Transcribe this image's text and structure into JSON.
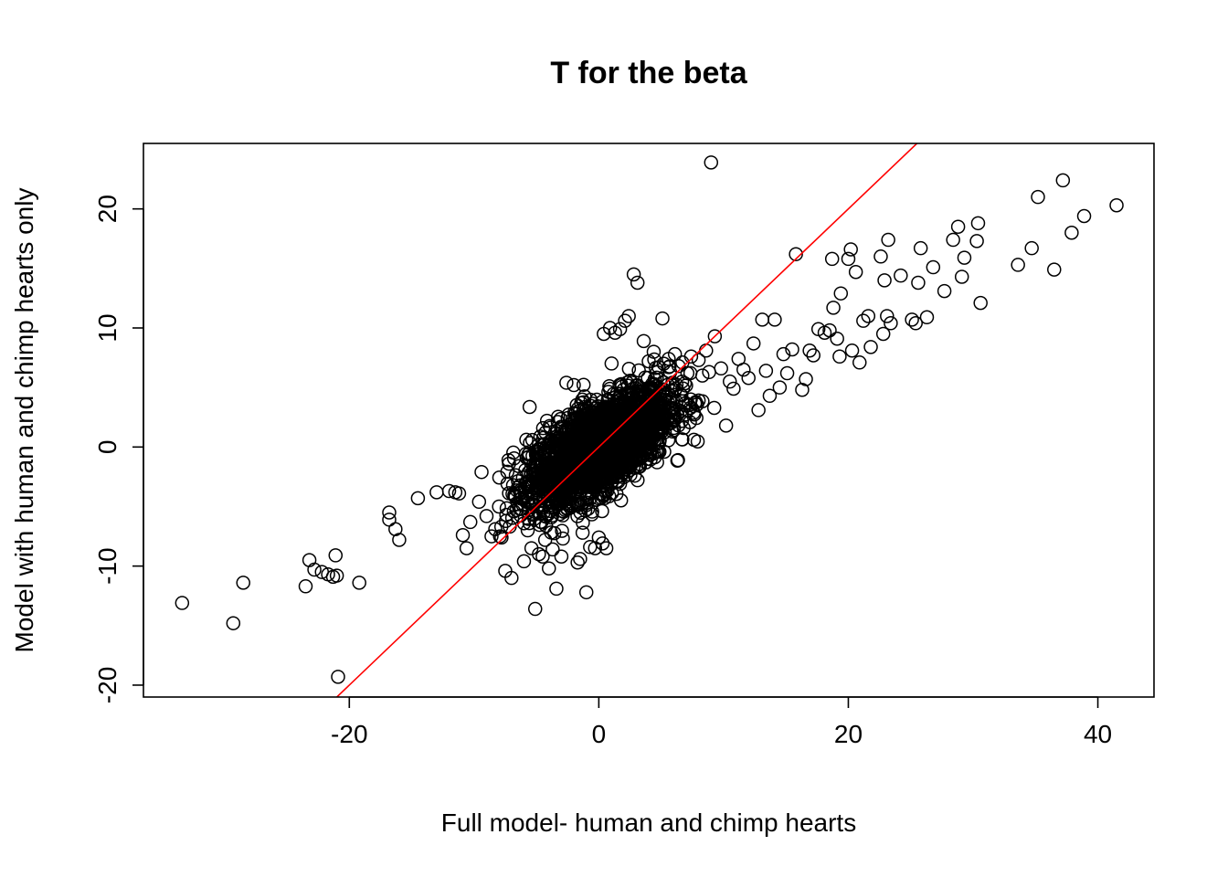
{
  "chart_data": {
    "type": "scatter",
    "title": "T for the beta",
    "xlabel": "Full model- human and chimp hearts",
    "ylabel": "Model with human and chimp hearts only",
    "xlim": [
      -36.5,
      44.5
    ],
    "ylim": [
      -21,
      25.5
    ],
    "xticks": [
      -20,
      0,
      20,
      40
    ],
    "yticks": [
      -20,
      -10,
      0,
      10,
      20
    ],
    "grid": false,
    "marker": "open-circle",
    "reference_line": {
      "intercept": 0,
      "slope": 1,
      "color": "#ff0000"
    },
    "points": [
      [
        -33.4,
        -13.1
      ],
      [
        -29.3,
        -14.8
      ],
      [
        -28.5,
        -11.4
      ],
      [
        -23.5,
        -11.7
      ],
      [
        -23.2,
        -9.5
      ],
      [
        -22.8,
        -10.3
      ],
      [
        -22.2,
        -10.5
      ],
      [
        -21.7,
        -10.7
      ],
      [
        -21.3,
        -10.9
      ],
      [
        -21.0,
        -10.8
      ],
      [
        -21.1,
        -9.1
      ],
      [
        -20.9,
        -19.3
      ],
      [
        -19.2,
        -11.4
      ],
      [
        -16.8,
        -5.5
      ],
      [
        -16.8,
        -6.1
      ],
      [
        -16.3,
        -6.9
      ],
      [
        -16.0,
        -7.8
      ],
      [
        -14.5,
        -4.3
      ],
      [
        -13.0,
        -3.8
      ],
      [
        -12.0,
        -3.7
      ],
      [
        -11.5,
        -3.8
      ],
      [
        -11.2,
        -3.9
      ],
      [
        -10.9,
        -7.4
      ],
      [
        -10.6,
        -8.5
      ],
      [
        -10.3,
        -6.3
      ],
      [
        -9.6,
        -4.6
      ],
      [
        -9.4,
        -2.1
      ],
      [
        -9.0,
        -5.8
      ],
      [
        -8.6,
        -7.5
      ],
      [
        -8.3,
        -6.9
      ],
      [
        -8.0,
        -5.0
      ],
      [
        -7.8,
        -7.6
      ],
      [
        -7.5,
        -10.4
      ],
      [
        -7.2,
        -1.4
      ],
      [
        -7.0,
        -11.0
      ],
      [
        -6.6,
        -5.3
      ],
      [
        -6.5,
        -4.8
      ],
      [
        -6.3,
        -5.2
      ],
      [
        -6.0,
        -9.6
      ],
      [
        -5.7,
        -7.0
      ],
      [
        -5.4,
        -8.5
      ],
      [
        -5.1,
        -13.6
      ],
      [
        -5.0,
        -3.6
      ],
      [
        -4.8,
        -9.0
      ],
      [
        -4.5,
        -9.2
      ],
      [
        -4.3,
        -7.8
      ],
      [
        -4.0,
        -10.2
      ],
      [
        -3.7,
        -8.6
      ],
      [
        -3.4,
        -11.9
      ],
      [
        -3.0,
        -9.2
      ],
      [
        -2.6,
        5.4
      ],
      [
        -2.4,
        -4.9
      ],
      [
        -2.0,
        5.2
      ],
      [
        -1.7,
        -9.7
      ],
      [
        -1.5,
        -9.4
      ],
      [
        -1.3,
        -7.2
      ],
      [
        -1.0,
        -12.2
      ],
      [
        -0.7,
        -8.4
      ],
      [
        -0.3,
        -8.5
      ],
      [
        0.0,
        -7.6
      ],
      [
        0.3,
        -8.1
      ],
      [
        0.6,
        -8.5
      ],
      [
        0.4,
        9.5
      ],
      [
        0.9,
        10.0
      ],
      [
        1.3,
        9.6
      ],
      [
        1.7,
        9.9
      ],
      [
        2.1,
        10.6
      ],
      [
        2.4,
        11.0
      ],
      [
        2.8,
        14.5
      ],
      [
        3.1,
        13.8
      ],
      [
        3.6,
        8.9
      ],
      [
        4.0,
        7.2
      ],
      [
        4.4,
        8.0
      ],
      [
        4.8,
        6.7
      ],
      [
        5.2,
        7.0
      ],
      [
        5.1,
        10.8
      ],
      [
        5.6,
        7.4
      ],
      [
        6.1,
        7.8
      ],
      [
        6.4,
        6.8
      ],
      [
        6.7,
        7.1
      ],
      [
        7.1,
        6.2
      ],
      [
        7.4,
        7.6
      ],
      [
        8.0,
        7.3
      ],
      [
        8.3,
        6.0
      ],
      [
        8.6,
        8.1
      ],
      [
        9.0,
        23.9
      ],
      [
        9.3,
        9.3
      ],
      [
        9.8,
        6.6
      ],
      [
        10.2,
        1.8
      ],
      [
        10.5,
        5.5
      ],
      [
        10.8,
        4.9
      ],
      [
        11.2,
        7.4
      ],
      [
        11.6,
        6.5
      ],
      [
        12.0,
        5.8
      ],
      [
        12.4,
        8.7
      ],
      [
        12.8,
        3.1
      ],
      [
        13.1,
        10.7
      ],
      [
        13.4,
        6.4
      ],
      [
        13.7,
        4.3
      ],
      [
        14.1,
        10.7
      ],
      [
        14.5,
        5.0
      ],
      [
        14.8,
        7.8
      ],
      [
        15.1,
        6.2
      ],
      [
        15.5,
        8.2
      ],
      [
        15.8,
        16.2
      ],
      [
        16.3,
        4.8
      ],
      [
        16.6,
        5.7
      ],
      [
        16.9,
        8.1
      ],
      [
        17.2,
        7.7
      ],
      [
        17.6,
        9.9
      ],
      [
        18.1,
        9.6
      ],
      [
        18.5,
        9.8
      ],
      [
        18.7,
        15.8
      ],
      [
        18.8,
        11.7
      ],
      [
        19.1,
        9.1
      ],
      [
        19.4,
        12.9
      ],
      [
        19.3,
        7.6
      ],
      [
        20.0,
        15.8
      ],
      [
        20.2,
        16.6
      ],
      [
        20.3,
        8.1
      ],
      [
        20.6,
        14.7
      ],
      [
        20.9,
        7.1
      ],
      [
        21.2,
        10.6
      ],
      [
        21.6,
        11.0
      ],
      [
        21.8,
        8.4
      ],
      [
        22.6,
        16.0
      ],
      [
        22.8,
        9.5
      ],
      [
        22.9,
        14.0
      ],
      [
        23.1,
        11.0
      ],
      [
        23.4,
        10.4
      ],
      [
        23.2,
        17.4
      ],
      [
        24.2,
        14.4
      ],
      [
        25.1,
        10.7
      ],
      [
        25.4,
        10.4
      ],
      [
        25.6,
        13.8
      ],
      [
        25.8,
        16.7
      ],
      [
        26.3,
        10.9
      ],
      [
        26.8,
        15.1
      ],
      [
        27.7,
        13.1
      ],
      [
        28.4,
        17.4
      ],
      [
        28.8,
        18.5
      ],
      [
        29.1,
        14.3
      ],
      [
        29.3,
        15.9
      ],
      [
        30.3,
        17.3
      ],
      [
        30.4,
        18.8
      ],
      [
        30.6,
        12.1
      ],
      [
        33.6,
        15.3
      ],
      [
        34.7,
        16.7
      ],
      [
        35.2,
        21.0
      ],
      [
        36.5,
        14.9
      ],
      [
        37.2,
        22.4
      ],
      [
        37.9,
        18.0
      ],
      [
        38.9,
        19.4
      ],
      [
        41.5,
        20.3
      ]
    ],
    "dense_cloud": {
      "x_range": [
        -8,
        9.5
      ],
      "y_range": [
        -8,
        8
      ],
      "slope": 0.55,
      "sd_x": 2.8,
      "sd_y": 1.8
    }
  }
}
